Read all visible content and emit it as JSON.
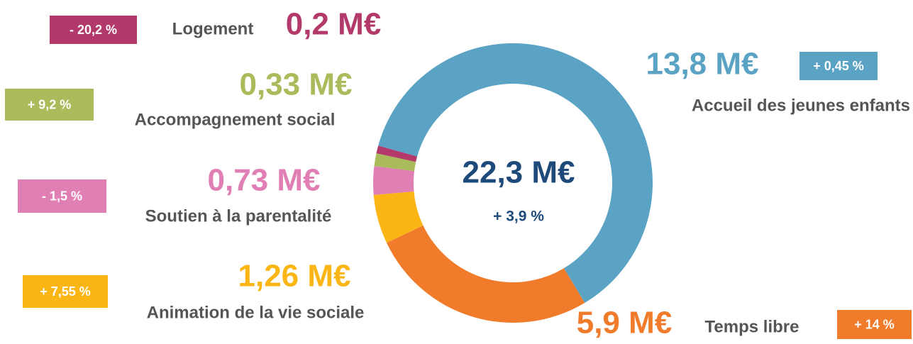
{
  "chart_data": {
    "type": "pie",
    "categories": [
      "Accueil des jeunes enfants",
      "Temps libre",
      "Animation de la vie sociale",
      "Soutien à la parentalité",
      "Accompagnement social",
      "Logement"
    ],
    "values": [
      13.8,
      5.9,
      1.26,
      0.73,
      0.33,
      0.2
    ],
    "value_labels": [
      "13,8 M€",
      "5,9 M€",
      "1,26 M€",
      "0,73 M€",
      "0,33 M€",
      "0,2 M€"
    ],
    "changes": [
      "+ 0,45 %",
      "+ 14 %",
      "+ 7,55 %",
      "- 1,5 %",
      "+ 9,2 %",
      "- 20,2 %"
    ],
    "colors": [
      "#5ba3c4",
      "#f07b2a",
      "#fbb616",
      "#e07fb4",
      "#a9bb5a",
      "#b3396b"
    ],
    "total_label": "22,3 M€",
    "total_change": "+ 3,9 %"
  }
}
